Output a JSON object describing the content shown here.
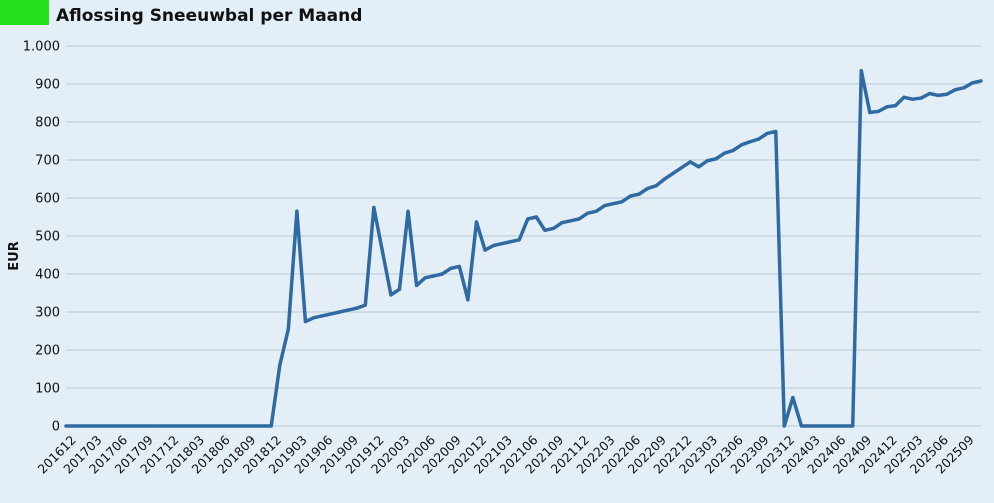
{
  "colors": {
    "background": "#e4eef6",
    "accent_swatch": "#22e01c",
    "line": "#2f6aa3",
    "grid": "#b7c9d7",
    "text": "#111111"
  },
  "chart_data": {
    "type": "line",
    "title": "Aflossing Sneeuwbal per Maand",
    "ylabel": "EUR",
    "xlabel": "",
    "ylim": [
      0,
      1000
    ],
    "grid": true,
    "y_ticks": [
      {
        "value": 0,
        "label": "0"
      },
      {
        "value": 100,
        "label": "100"
      },
      {
        "value": 200,
        "label": "200"
      },
      {
        "value": 300,
        "label": "300"
      },
      {
        "value": 400,
        "label": "400"
      },
      {
        "value": 500,
        "label": "500"
      },
      {
        "value": 600,
        "label": "600"
      },
      {
        "value": 700,
        "label": "700"
      },
      {
        "value": 800,
        "label": "800"
      },
      {
        "value": 900,
        "label": "900"
      },
      {
        "value": 1000,
        "label": "1.000"
      }
    ],
    "x_tick_labels": [
      "201612",
      "201703",
      "201706",
      "201709",
      "201712",
      "201803",
      "201806",
      "201809",
      "201812",
      "201903",
      "201906",
      "201909",
      "201912",
      "202003",
      "202006",
      "202009",
      "202012",
      "202103",
      "202106",
      "202109",
      "202112",
      "202203",
      "202206",
      "202209",
      "202212",
      "202303",
      "202306",
      "202309",
      "202312",
      "202403",
      "202406",
      "202409",
      "202412",
      "202503",
      "202506",
      "202509"
    ],
    "series": [
      {
        "start": "201612",
        "values": [
          0,
          0,
          0,
          0,
          0,
          0,
          0,
          0,
          0,
          0,
          0,
          0,
          0,
          0,
          0,
          0,
          0,
          0,
          0,
          0,
          0,
          0,
          0,
          0,
          0,
          160,
          255,
          565,
          275,
          285,
          290,
          295,
          300,
          305,
          310,
          318,
          575,
          460,
          345,
          360,
          565,
          370,
          390,
          395,
          400,
          415,
          420,
          332,
          537,
          463,
          475,
          480,
          485,
          490,
          545,
          550,
          515,
          520,
          535,
          540,
          545,
          560,
          565,
          580,
          585,
          590,
          605,
          610,
          625,
          632,
          650,
          665,
          680,
          695,
          682,
          698,
          703,
          718,
          725,
          740,
          748,
          755,
          770,
          775,
          0,
          75,
          0,
          0,
          0,
          0,
          0,
          0,
          0,
          935,
          825,
          828,
          840,
          843,
          865,
          860,
          863,
          875,
          870,
          873,
          885,
          890,
          903,
          908
        ]
      }
    ]
  }
}
